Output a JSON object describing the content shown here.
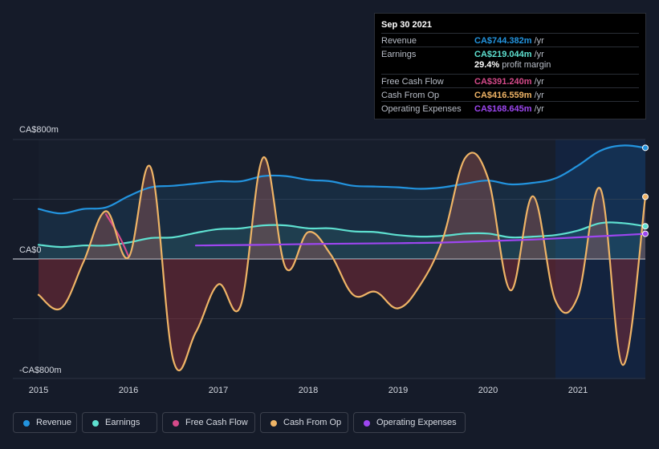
{
  "colors": {
    "revenue": "#2394df",
    "earnings": "#5ee0d0",
    "free_cash_flow": "#d54a8a",
    "cash_from_op": "#efb466",
    "operating_expenses": "#9d46f0"
  },
  "tooltip": {
    "date": "Sep 30 2021",
    "rows": [
      {
        "label": "Revenue",
        "value": "CA$744.382m",
        "unit": "/yr"
      },
      {
        "label": "Earnings",
        "value": "CA$219.044m",
        "unit": "/yr"
      },
      {
        "label": "Free Cash Flow",
        "value": "CA$391.240m",
        "unit": "/yr"
      },
      {
        "label": "Cash From Op",
        "value": "CA$416.559m",
        "unit": "/yr"
      },
      {
        "label": "Operating Expenses",
        "value": "CA$168.645m",
        "unit": "/yr"
      }
    ],
    "profit_margin_value": "29.4%",
    "profit_margin_label": "profit margin"
  },
  "legend": [
    "Revenue",
    "Earnings",
    "Free Cash Flow",
    "Cash From Op",
    "Operating Expenses"
  ],
  "chart_data": {
    "type": "line",
    "y_unit": "CA$m",
    "ylim": [
      -800,
      800
    ],
    "y_tick_labels": [
      "CA$800m",
      "CA$0",
      "-CA$800m"
    ],
    "x_tick_labels": [
      "2015",
      "2016",
      "2017",
      "2018",
      "2019",
      "2020",
      "2021"
    ],
    "xlim": [
      2015.0,
      2021.75
    ],
    "highlight_from": 2020.75,
    "series": [
      {
        "name": "Revenue",
        "x": [
          2015.0,
          2015.25,
          2015.5,
          2015.75,
          2016.0,
          2016.25,
          2016.5,
          2016.75,
          2017.0,
          2017.25,
          2017.5,
          2017.75,
          2018.0,
          2018.25,
          2018.5,
          2018.75,
          2019.0,
          2019.25,
          2019.5,
          2019.75,
          2020.0,
          2020.25,
          2020.5,
          2020.75,
          2021.0,
          2021.25,
          2021.5,
          2021.75
        ],
        "y": [
          335,
          305,
          335,
          345,
          420,
          480,
          490,
          505,
          520,
          520,
          555,
          555,
          530,
          520,
          490,
          485,
          480,
          470,
          480,
          505,
          525,
          500,
          510,
          540,
          625,
          725,
          760,
          744.382
        ]
      },
      {
        "name": "Earnings",
        "x": [
          2015.0,
          2015.25,
          2015.5,
          2015.75,
          2016.0,
          2016.25,
          2016.5,
          2016.75,
          2017.0,
          2017.25,
          2017.5,
          2017.75,
          2018.0,
          2018.25,
          2018.5,
          2018.75,
          2019.0,
          2019.25,
          2019.5,
          2019.75,
          2020.0,
          2020.25,
          2020.5,
          2020.75,
          2021.0,
          2021.25,
          2021.5,
          2021.75
        ],
        "y": [
          95,
          80,
          90,
          90,
          110,
          140,
          145,
          175,
          200,
          205,
          225,
          225,
          205,
          205,
          185,
          180,
          160,
          150,
          155,
          170,
          170,
          145,
          150,
          160,
          190,
          240,
          240,
          219.044
        ]
      },
      {
        "name": "Free Cash Flow",
        "x": [
          2015.75,
          2015.9,
          2016.0
        ],
        "y": [
          300,
          150,
          20
        ]
      },
      {
        "name": "Cash From Op",
        "x": [
          2015.0,
          2015.25,
          2015.5,
          2015.75,
          2016.0,
          2016.25,
          2016.5,
          2016.75,
          2017.0,
          2017.25,
          2017.5,
          2017.75,
          2018.0,
          2018.25,
          2018.5,
          2018.75,
          2019.0,
          2019.25,
          2019.5,
          2019.75,
          2020.0,
          2020.25,
          2020.5,
          2020.75,
          2021.0,
          2021.25,
          2021.5,
          2021.75
        ],
        "y": [
          -240,
          -330,
          -20,
          320,
          10,
          610,
          -680,
          -490,
          -170,
          -310,
          680,
          -60,
          180,
          30,
          -240,
          -220,
          -330,
          -170,
          140,
          680,
          540,
          -210,
          420,
          -280,
          -250,
          470,
          -710,
          416.559
        ]
      },
      {
        "name": "Operating Expenses",
        "x": [
          2016.75,
          2017.0,
          2017.5,
          2018.0,
          2018.5,
          2019.0,
          2019.5,
          2020.0,
          2020.5,
          2021.0,
          2021.5,
          2021.75
        ],
        "y": [
          90,
          92,
          95,
          100,
          103,
          106,
          110,
          120,
          130,
          145,
          160,
          168.645
        ]
      }
    ]
  }
}
